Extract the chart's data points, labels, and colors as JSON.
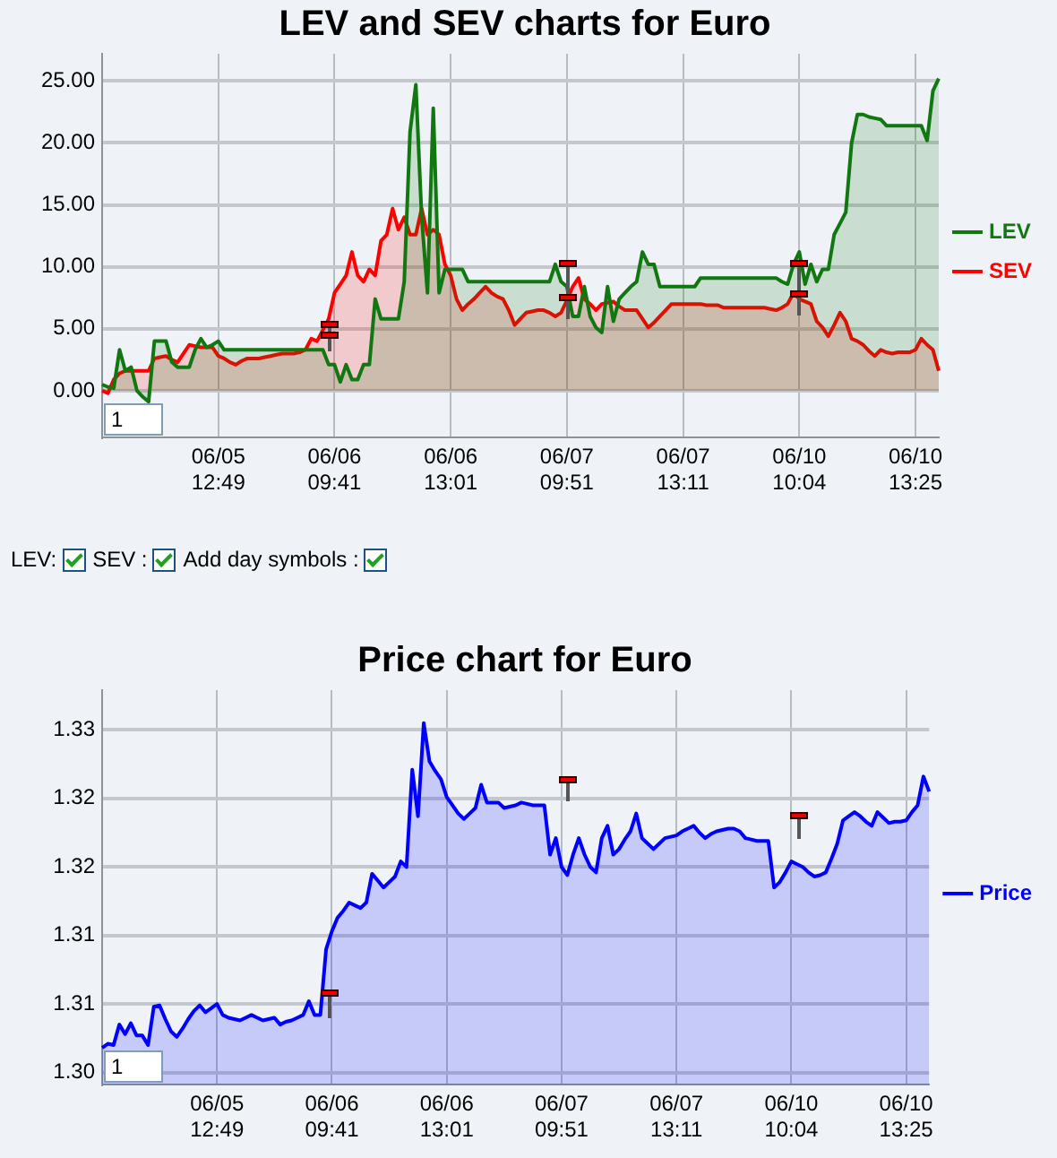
{
  "chart_data": [
    {
      "type": "area",
      "title": "LEV and SEV charts for Euro",
      "categories": [
        null,
        null,
        null,
        null,
        null,
        null,
        null,
        null,
        null,
        null,
        null,
        null,
        null,
        null,
        null,
        null,
        null,
        null,
        null,
        null,
        "06/05 12:49",
        null,
        null,
        null,
        null,
        null,
        null,
        null,
        null,
        null,
        null,
        null,
        null,
        null,
        null,
        null,
        null,
        null,
        null,
        null,
        "06/06 09:41",
        null,
        null,
        null,
        null,
        null,
        null,
        null,
        null,
        null,
        null,
        null,
        null,
        null,
        null,
        null,
        null,
        null,
        null,
        null,
        "06/06 13:01",
        null,
        null,
        null,
        null,
        null,
        null,
        null,
        null,
        null,
        null,
        null,
        null,
        null,
        null,
        null,
        null,
        null,
        null,
        null,
        "06/07 09:51",
        null,
        null,
        null,
        null,
        null,
        null,
        null,
        null,
        null,
        null,
        null,
        null,
        null,
        null,
        null,
        null,
        null,
        null,
        null,
        "06/07 13:11",
        null,
        null,
        null,
        null,
        null,
        null,
        null,
        null,
        null,
        null,
        null,
        null,
        null,
        null,
        null,
        null,
        null,
        null,
        null,
        "06/10 10:04",
        null,
        null,
        null,
        null,
        null,
        null,
        null,
        null,
        null,
        null,
        null,
        null,
        null,
        null,
        null,
        null,
        null,
        null,
        null,
        "06/10 13:25",
        null,
        null,
        null,
        null
      ],
      "ylim": [
        -3.8,
        27.2
      ],
      "yticks": [
        {
          "value": 0,
          "label": "0.00"
        },
        {
          "value": 5,
          "label": "5.00"
        },
        {
          "value": 10,
          "label": "10.00"
        },
        {
          "value": 15,
          "label": "15.00"
        },
        {
          "value": 20,
          "label": "20.00"
        },
        {
          "value": 25,
          "label": "25.00"
        }
      ],
      "grid": true,
      "legend": "right",
      "annotations": [
        "1",
        "LEV:",
        "SEV :",
        "Add day symbols :"
      ],
      "series": [
        {
          "name": "LEV",
          "color": "#117711",
          "values": [
            0.5,
            0.3,
            0.2,
            3.3,
            1.6,
            1.9,
            0,
            -0.5,
            -0.9,
            4.0,
            4.0,
            4.0,
            2.3,
            1.9,
            1.9,
            1.9,
            3.3,
            4.2,
            3.5,
            3.7,
            4.0,
            3.3,
            3.3,
            3.3,
            3.3,
            3.3,
            3.3,
            3.3,
            3.3,
            3.3,
            3.3,
            3.3,
            3.3,
            3.3,
            3.3,
            3.3,
            3.3,
            3.3,
            3.3,
            2.1,
            2.1,
            0.7,
            2.1,
            0.9,
            0.9,
            2.1,
            2.1,
            7.4,
            5.8,
            5.8,
            5.8,
            5.8,
            8.8,
            20.9,
            24.7,
            14.0,
            7.9,
            22.8,
            7.9,
            9.8,
            9.8,
            9.8,
            9.8,
            8.8,
            8.8,
            8.8,
            8.8,
            8.8,
            8.8,
            8.8,
            8.8,
            8.8,
            8.8,
            8.8,
            8.8,
            8.8,
            8.8,
            8.8,
            10.2,
            8.8,
            8.4,
            6.0,
            6.0,
            8.4,
            6.0,
            5.1,
            4.7,
            8.4,
            5.6,
            7.4,
            7.9,
            8.4,
            8.8,
            11.2,
            10.2,
            10.2,
            8.4,
            8.4,
            8.4,
            8.4,
            8.4,
            8.4,
            8.4,
            9.1,
            9.1,
            9.1,
            9.1,
            9.1,
            9.1,
            9.1,
            9.1,
            9.1,
            9.1,
            9.1,
            9.1,
            9.1,
            9.1,
            8.8,
            8.6,
            10.2,
            11.2,
            8.6,
            10.2,
            8.8,
            9.8,
            9.8,
            12.6,
            13.5,
            14.4,
            20.0,
            22.3,
            22.3,
            22.1,
            22.0,
            21.9,
            21.4,
            21.4,
            21.4,
            21.4,
            21.4,
            21.4,
            21.4,
            20.2,
            24.2,
            25.2
          ]
        },
        {
          "name": "SEV",
          "color": "#ff0000",
          "values": [
            0,
            -0.2,
            0.9,
            1.4,
            1.6,
            1.6,
            1.6,
            1.6,
            1.6,
            2.6,
            2.7,
            2.8,
            2.5,
            2.3,
            3.0,
            3.7,
            3.6,
            3.5,
            3.5,
            3.5,
            2.8,
            2.6,
            2.3,
            2.1,
            2.4,
            2.6,
            2.6,
            2.6,
            2.7,
            2.8,
            2.9,
            3.0,
            3.0,
            3.0,
            3.1,
            3.3,
            4.2,
            4.0,
            4.9,
            5.8,
            7.9,
            8.6,
            9.3,
            11.2,
            9.3,
            8.8,
            9.8,
            9.3,
            12.1,
            12.6,
            14.7,
            13.0,
            14.0,
            12.6,
            12.6,
            14.7,
            12.6,
            13.0,
            12.6,
            10.2,
            9.3,
            7.4,
            6.5,
            7.0,
            7.4,
            7.9,
            8.4,
            7.9,
            7.6,
            7.4,
            6.5,
            5.3,
            5.8,
            6.3,
            6.4,
            6.5,
            6.5,
            6.3,
            6.0,
            6.3,
            7.3,
            8.4,
            9.1,
            7.4,
            7.0,
            6.5,
            7.0,
            7.1,
            7.2,
            6.8,
            6.5,
            6.5,
            6.5,
            5.8,
            5.1,
            5.5,
            6.0,
            6.5,
            7.0,
            7.0,
            7.0,
            7.0,
            7.0,
            7.0,
            6.9,
            6.9,
            6.9,
            6.7,
            6.7,
            6.7,
            6.7,
            6.7,
            6.7,
            6.7,
            6.7,
            6.6,
            6.5,
            6.7,
            7.0,
            7.9,
            7.4,
            7.2,
            7.0,
            5.6,
            5.1,
            4.4,
            5.3,
            6.3,
            5.6,
            4.2,
            4.0,
            3.7,
            3.2,
            2.8,
            3.3,
            3.1,
            3.0,
            3.1,
            3.1,
            3.1,
            3.3,
            4.2,
            3.7,
            3.3,
            1.6
          ]
        }
      ]
    },
    {
      "type": "area",
      "title": "Price chart for Euro",
      "categories": [
        null,
        null,
        null,
        null,
        null,
        null,
        null,
        null,
        null,
        null,
        null,
        null,
        null,
        null,
        null,
        null,
        null,
        null,
        null,
        null,
        "06/05 12:49",
        null,
        null,
        null,
        null,
        null,
        null,
        null,
        null,
        null,
        null,
        null,
        null,
        null,
        null,
        null,
        null,
        null,
        null,
        null,
        "06/06 09:41",
        null,
        null,
        null,
        null,
        null,
        null,
        null,
        null,
        null,
        null,
        null,
        null,
        null,
        null,
        null,
        null,
        null,
        null,
        null,
        "06/06 13:01",
        null,
        null,
        null,
        null,
        null,
        null,
        null,
        null,
        null,
        null,
        null,
        null,
        null,
        null,
        null,
        null,
        null,
        null,
        null,
        "06/07 09:51",
        null,
        null,
        null,
        null,
        null,
        null,
        null,
        null,
        null,
        null,
        null,
        null,
        null,
        null,
        null,
        null,
        null,
        null,
        null,
        "06/07 13:11",
        null,
        null,
        null,
        null,
        null,
        null,
        null,
        null,
        null,
        null,
        null,
        null,
        null,
        null,
        null,
        null,
        null,
        null,
        null,
        "06/10 10:04",
        null,
        null,
        null,
        null,
        null,
        null,
        null,
        null,
        null,
        null,
        null,
        null,
        null,
        null,
        null,
        null,
        null,
        null,
        null,
        "06/10 13:25",
        null,
        null,
        null,
        null
      ],
      "ylim": [
        1.2991,
        1.3279
      ],
      "yticks": [
        {
          "value": 1.3,
          "label": "1.30"
        },
        {
          "value": 1.305,
          "label": "1.31"
        },
        {
          "value": 1.31,
          "label": "1.31"
        },
        {
          "value": 1.315,
          "label": "1.32"
        },
        {
          "value": 1.32,
          "label": "1.32"
        },
        {
          "value": 1.325,
          "label": "1.33"
        }
      ],
      "grid": true,
      "legend": "right",
      "annotations": [
        "1"
      ],
      "series": [
        {
          "name": "Price",
          "color": "#0000ff",
          "values": [
            1.3018,
            1.3021,
            1.302,
            1.3035,
            1.3028,
            1.3036,
            1.3027,
            1.3027,
            1.302,
            1.3048,
            1.3049,
            1.3039,
            1.303,
            1.3026,
            1.3032,
            1.3039,
            1.3045,
            1.3049,
            1.3044,
            1.3047,
            1.305,
            1.3042,
            1.304,
            1.3039,
            1.3038,
            1.304,
            1.3042,
            1.304,
            1.3038,
            1.3039,
            1.304,
            1.3035,
            1.3037,
            1.3038,
            1.304,
            1.3042,
            1.3052,
            1.3042,
            1.3042,
            1.309,
            1.3103,
            1.3113,
            1.3118,
            1.3124,
            1.3122,
            1.312,
            1.3124,
            1.3145,
            1.314,
            1.3135,
            1.3139,
            1.3143,
            1.3154,
            1.315,
            1.3221,
            1.3187,
            1.3255,
            1.3227,
            1.322,
            1.3214,
            1.3201,
            1.3195,
            1.3189,
            1.3185,
            1.3189,
            1.3193,
            1.321,
            1.3197,
            1.3197,
            1.3197,
            1.3193,
            1.3194,
            1.3195,
            1.3197,
            1.3196,
            1.3195,
            1.3195,
            1.3195,
            1.3159,
            1.3171,
            1.315,
            1.3144,
            1.3159,
            1.3171,
            1.3159,
            1.315,
            1.3146,
            1.3171,
            1.318,
            1.3159,
            1.3163,
            1.317,
            1.3176,
            1.3189,
            1.3171,
            1.3167,
            1.3163,
            1.3167,
            1.3171,
            1.3172,
            1.3173,
            1.3176,
            1.3178,
            1.318,
            1.3175,
            1.3171,
            1.3174,
            1.3176,
            1.3177,
            1.3178,
            1.3178,
            1.3176,
            1.3171,
            1.317,
            1.3169,
            1.3169,
            1.3169,
            1.3135,
            1.3139,
            1.3146,
            1.3154,
            1.3152,
            1.315,
            1.3146,
            1.3143,
            1.3144,
            1.3146,
            1.3156,
            1.3167,
            1.3184,
            1.3187,
            1.319,
            1.3187,
            1.3183,
            1.318,
            1.319,
            1.3186,
            1.3182,
            1.3183,
            1.3183,
            1.3184,
            1.319,
            1.3195,
            1.3216,
            1.3205
          ]
        }
      ]
    }
  ]
}
